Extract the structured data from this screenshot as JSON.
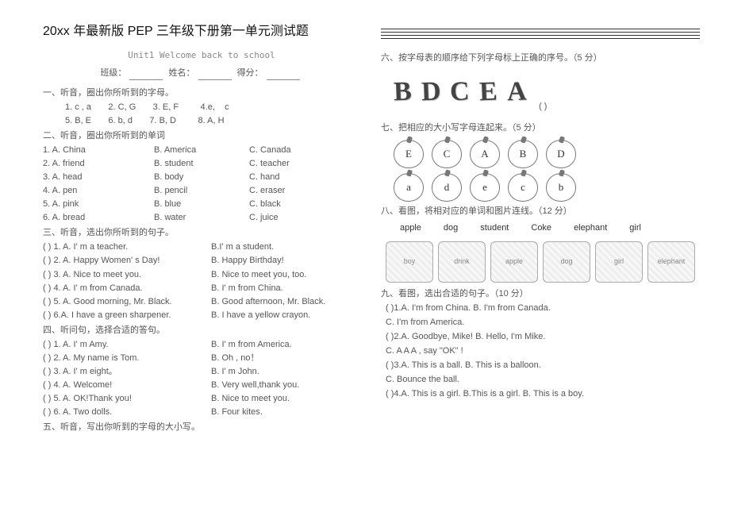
{
  "left": {
    "main_title": "20xx 年最新版 PEP 三年级下册第一单元测试题",
    "subtitle": "Unit1 Welcome back to school",
    "header": {
      "class": "班级：",
      "name": "姓名：",
      "score": "得分："
    },
    "s1": {
      "title": "一、听音，圈出你所听到的字母。",
      "row1": "1. c , a       2. C, G       3. E, F         4.e,    c",
      "row2": "5. B, E       6. b, d       7. B, D         8. A, H"
    },
    "s2": {
      "title": "二、听音，圈出你所听到的单词",
      "rows": [
        [
          "1. A. China",
          "B. America",
          "C. Canada"
        ],
        [
          "2. A. friend",
          "B. student",
          "C. teacher"
        ],
        [
          "3. A. head",
          "B. body",
          "C. hand"
        ],
        [
          "4. A. pen",
          "B. pencil",
          "C. eraser"
        ],
        [
          "5. A. pink",
          "B. blue",
          "C. black"
        ],
        [
          "6. A. bread",
          "B. water",
          "C. juice"
        ]
      ]
    },
    "s3": {
      "title": "三、听音，选出你所听到的句子。",
      "rows": [
        [
          "(    ) 1. A. I' m a teacher.",
          "B.I' m a student."
        ],
        [
          "(    ) 2. A. Happy Women' s Day!",
          "B. Happy Birthday!"
        ],
        [
          "(    ) 3. A. Nice to meet you.",
          "B. Nice to meet you, too."
        ],
        [
          "(    ) 4. A. I' m from Canada.",
          "B. I' m from China."
        ],
        [
          "(    ) 5. A. Good morning, Mr. Black.",
          " B. Good afternoon, Mr. Black."
        ],
        [
          "(    ) 6.A. I have a green sharpener.",
          "B. I have a yellow crayon."
        ]
      ]
    },
    "s4": {
      "title": "四、听问句，选择合适的答句。",
      "rows": [
        [
          "(    ) 1. A. I' m Amy.",
          "B. I' m from America."
        ],
        [
          "(    ) 2. A. My name is Tom.",
          "B. Oh , no！"
        ],
        [
          "(    ) 3. A. I' m eight。",
          "B. I' m John."
        ],
        [
          "(    ) 4. A. Welcome!",
          "B. Very well,thank you."
        ],
        [
          "(    ) 5. A. OK!Thank you!",
          "B. Nice to meet you."
        ],
        [
          "(    ) 6. A. Two dolls.",
          "B. Four kites."
        ]
      ]
    },
    "s5": {
      "title": "五、听音，写出你听到的字母的大小写。"
    }
  },
  "right": {
    "s6": {
      "title": "六、按字母表的顺序给下列字母标上正确的序号。（5 分）",
      "letters": [
        "B",
        "D",
        "C",
        "E",
        "A"
      ],
      "paren": "(       )"
    },
    "s7": {
      "title": "七、把相应的大小写字母连起来。（5 分）",
      "upper": [
        "E",
        "C",
        "A",
        "B",
        "D"
      ],
      "lower": [
        "a",
        "d",
        "e",
        "c",
        "b"
      ]
    },
    "s8": {
      "title": "八、看图，将相对应的单词和图片连线。（12 分）",
      "words": [
        "apple",
        "dog",
        "student",
        "Coke",
        "elephant",
        "girl"
      ],
      "pics": [
        "boy",
        "drink",
        "apple",
        "dog",
        "girl",
        "elephant"
      ]
    },
    "s9": {
      "title": "九、看图，选出合适的句子。（10 分）",
      "q1a": "(     )1.A. I'm from China.     B. I'm from Canada.",
      "q1b": "C. I'm from America.",
      "q2a": "(     )2.A. Goodbye, Mike!       B. Hello, I'm Mike.",
      "q2b": "C. A A A , say \"OK\" !",
      "q3a": "(     )3.A. This is a ball.     B. This is a balloon.",
      "q3b": "C. Bounce the ball.",
      "q4": "(     )4.A. This is a girl.     B.This is a girl.     B. This is a boy."
    }
  }
}
